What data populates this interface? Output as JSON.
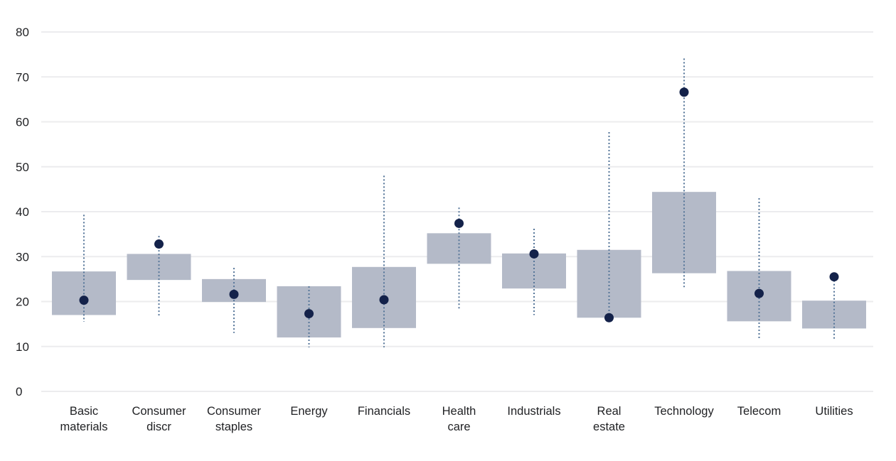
{
  "chart_data": {
    "type": "boxplot",
    "title": "",
    "xlabel": "",
    "ylabel": "",
    "ylim": [
      0,
      80
    ],
    "yticks": [
      0,
      10,
      20,
      30,
      40,
      50,
      60,
      70,
      80
    ],
    "grid": "horizontal",
    "legend_position": "none",
    "marker_meaning": "dark dot = current value, grey box = typical range, dotted line = min-max range",
    "categories": [
      "Basic materials",
      "Consumer discr",
      "Consumer staples",
      "Energy",
      "Financials",
      "Health care",
      "Industrials",
      "Real estate",
      "Technology",
      "Telecom",
      "Utilities"
    ],
    "series": [
      {
        "name": "Basic materials",
        "label_lines": [
          "Basic",
          "materials"
        ],
        "whisker_low": 15.5,
        "box_low": 17.0,
        "dot": 20.3,
        "box_high": 26.7,
        "whisker_high": 39.3
      },
      {
        "name": "Consumer discr",
        "label_lines": [
          "Consumer",
          "discr"
        ],
        "whisker_low": 16.5,
        "box_low": 24.8,
        "dot": 32.8,
        "box_high": 30.6,
        "whisker_high": 34.6
      },
      {
        "name": "Consumer staples",
        "label_lines": [
          "Consumer",
          "staples"
        ],
        "whisker_low": 13.0,
        "box_low": 19.9,
        "dot": 21.6,
        "box_high": 25.0,
        "whisker_high": 27.5
      },
      {
        "name": "Energy",
        "label_lines": [
          "Energy"
        ],
        "whisker_low": 9.8,
        "box_low": 12.0,
        "dot": 17.3,
        "box_high": 23.4,
        "whisker_high": 23.4
      },
      {
        "name": "Financials",
        "label_lines": [
          "Financials"
        ],
        "whisker_low": 9.8,
        "box_low": 14.1,
        "dot": 20.4,
        "box_high": 27.7,
        "whisker_high": 48.0
      },
      {
        "name": "Health care",
        "label_lines": [
          "Health",
          "care"
        ],
        "whisker_low": 18.0,
        "box_low": 28.4,
        "dot": 37.4,
        "box_high": 35.2,
        "whisker_high": 40.9
      },
      {
        "name": "Industrials",
        "label_lines": [
          "Industrials"
        ],
        "whisker_low": 17.0,
        "box_low": 22.9,
        "dot": 30.6,
        "box_high": 30.7,
        "whisker_high": 36.2
      },
      {
        "name": "Real estate",
        "label_lines": [
          "Real",
          "estate"
        ],
        "whisker_low": 16.3,
        "box_low": 16.4,
        "dot": 16.4,
        "box_high": 31.5,
        "whisker_high": 57.7
      },
      {
        "name": "Technology",
        "label_lines": [
          "Technology"
        ],
        "whisker_low": 23.2,
        "box_low": 26.3,
        "dot": 66.6,
        "box_high": 44.4,
        "whisker_high": 74.1
      },
      {
        "name": "Telecom",
        "label_lines": [
          "Telecom"
        ],
        "whisker_low": 11.5,
        "box_low": 15.6,
        "dot": 21.8,
        "box_high": 26.8,
        "whisker_high": 43.0
      },
      {
        "name": "Utilities",
        "label_lines": [
          "Utilities"
        ],
        "whisker_low": 11.7,
        "box_low": 14.0,
        "dot": 25.5,
        "box_high": 20.2,
        "whisker_high": 25.5
      }
    ],
    "colors": {
      "box": "#b4bac8",
      "dot": "#14224a",
      "whisker": "#567699",
      "gridline": "#ececee",
      "axis_text": "#1f2023"
    }
  }
}
